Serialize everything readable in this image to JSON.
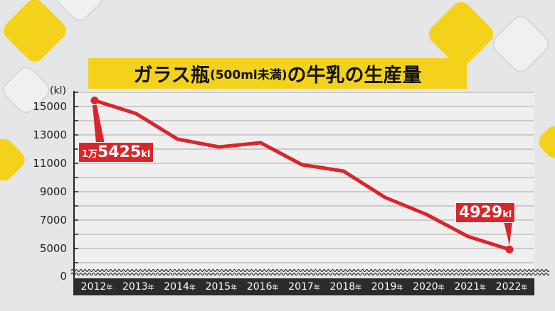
{
  "colors": {
    "line": "#d9262a",
    "banner": "#f4d21c",
    "axis_bar": "#2b2b2b"
  },
  "chart_data": {
    "type": "line",
    "title": {
      "main": "ガラス瓶",
      "paren": "(500ml未満)",
      "rest": "の牛乳の生産量"
    },
    "ylabel": "(kl)",
    "year_suffix": "年",
    "categories": [
      "2012",
      "2013",
      "2014",
      "2015",
      "2016",
      "2017",
      "2018",
      "2019",
      "2020",
      "2021",
      "2022"
    ],
    "values": [
      15425,
      14500,
      12700,
      12150,
      12450,
      10900,
      10450,
      8600,
      7400,
      5850,
      4929
    ],
    "yticks": [
      "15000",
      "13000",
      "11000",
      "9000",
      "7000",
      "5000",
      "0"
    ],
    "ylim": [
      0,
      16000
    ],
    "axis_break": true,
    "grid": true,
    "annotations": [
      {
        "prefix": "1万",
        "number": "5425",
        "unit": "kl"
      },
      {
        "prefix": "",
        "number": "4929",
        "unit": "kl"
      }
    ]
  }
}
